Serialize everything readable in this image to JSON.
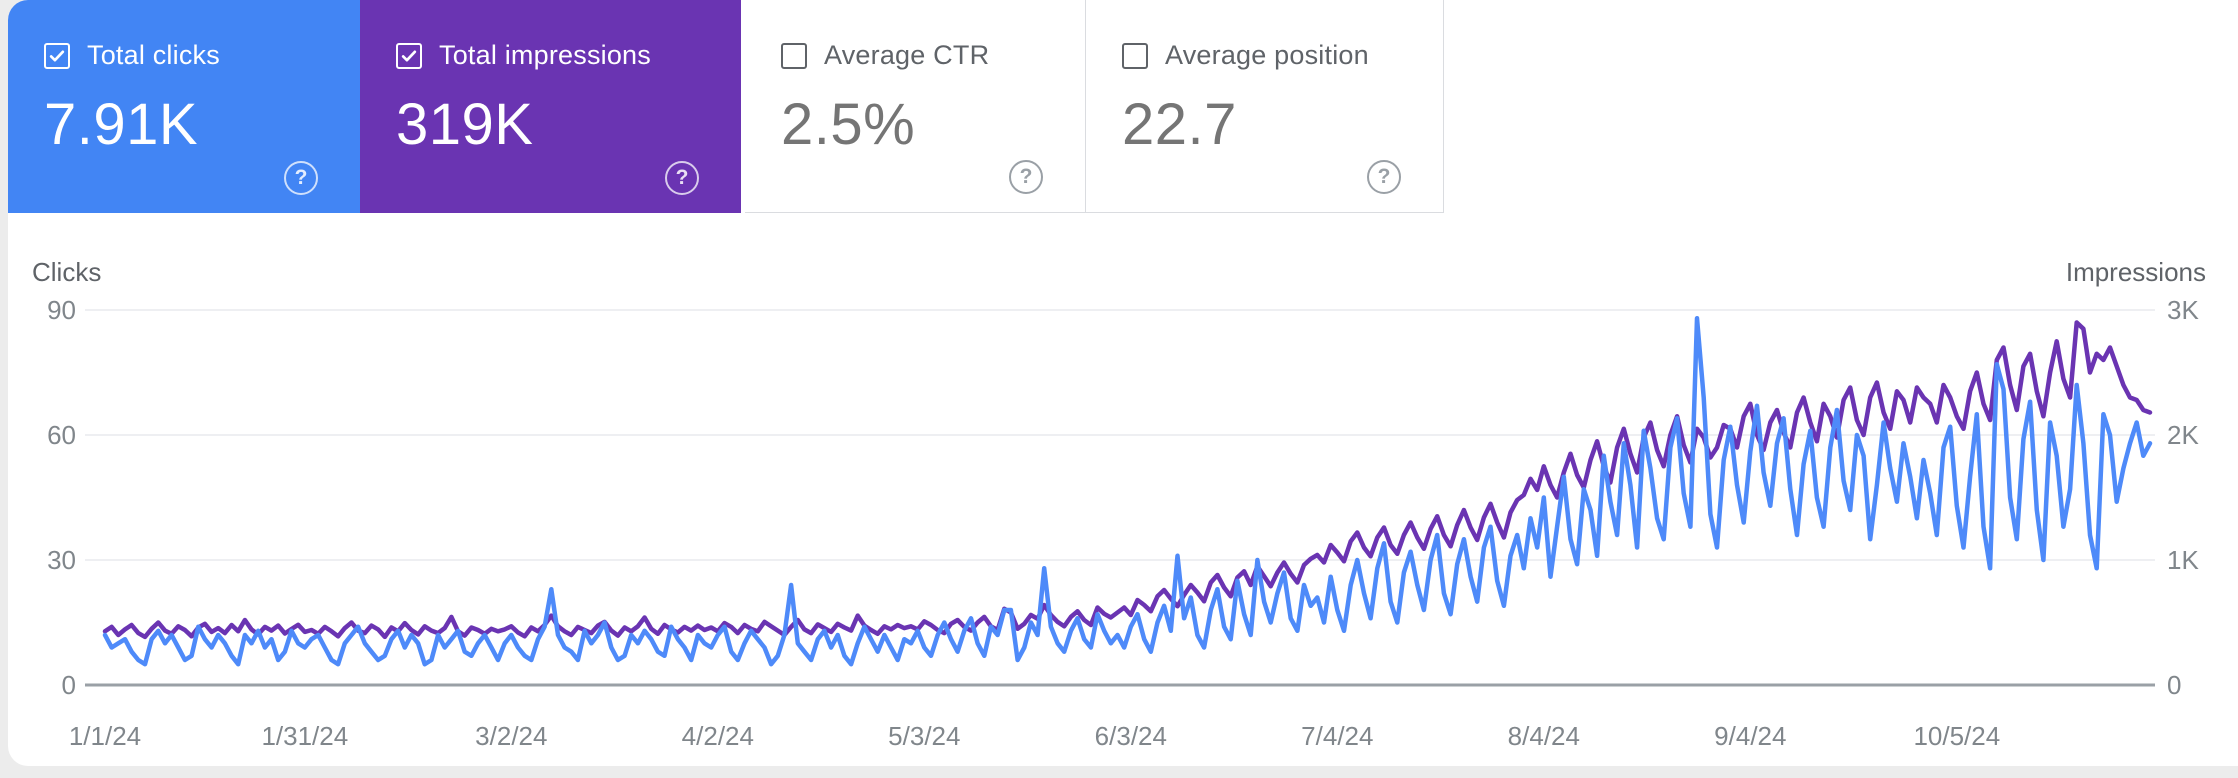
{
  "cards": [
    {
      "label": "Total clicks",
      "value": "7.91K",
      "checked": true,
      "bg": "#4285f4"
    },
    {
      "label": "Total impressions",
      "value": "319K",
      "checked": true,
      "bg": "#6a34b2"
    },
    {
      "label": "Average CTR",
      "value": "2.5%",
      "checked": false,
      "bg": "#ffffff"
    },
    {
      "label": "Average position",
      "value": "22.7",
      "checked": false,
      "bg": "#ffffff"
    }
  ],
  "help_icon_glyph": "?",
  "chart_data": {
    "type": "line",
    "left_axis": {
      "label": "Clicks",
      "ticks": [
        "0",
        "30",
        "60",
        "90"
      ],
      "max": 90
    },
    "right_axis": {
      "label": "Impressions",
      "ticks": [
        "0",
        "1K",
        "2K",
        "3K"
      ],
      "max": 3000
    },
    "x_ticks": [
      {
        "label": "1/1/24",
        "day": 0
      },
      {
        "label": "1/31/24",
        "day": 30
      },
      {
        "label": "3/2/24",
        "day": 61
      },
      {
        "label": "4/2/24",
        "day": 92
      },
      {
        "label": "5/3/24",
        "day": 123
      },
      {
        "label": "6/3/24",
        "day": 154
      },
      {
        "label": "7/4/24",
        "day": 185
      },
      {
        "label": "8/4/24",
        "day": 216
      },
      {
        "label": "9/4/24",
        "day": 247
      },
      {
        "label": "10/5/24",
        "day": 278
      }
    ],
    "num_days": 308,
    "grid_color": "#e8eaed",
    "baseline_color": "#9aa0a6",
    "tick_text_color": "#80868b",
    "axis_title_color": "#5f6368",
    "series": [
      {
        "name": "Clicks",
        "axis": "left",
        "color": "#4e8af9",
        "values": [
          12,
          9,
          10,
          11,
          8,
          6,
          5,
          11,
          13,
          10,
          12,
          9,
          6,
          7,
          14,
          11,
          9,
          12,
          10,
          7,
          5,
          12,
          10,
          13,
          9,
          11,
          6,
          8,
          13,
          10,
          9,
          11,
          12,
          9,
          6,
          5,
          10,
          12,
          14,
          10,
          8,
          6,
          7,
          11,
          13,
          9,
          12,
          10,
          5,
          6,
          12,
          9,
          11,
          13,
          8,
          7,
          10,
          12,
          9,
          6,
          10,
          12,
          9,
          7,
          6,
          11,
          14,
          23,
          12,
          9,
          8,
          6,
          13,
          10,
          12,
          15,
          9,
          6,
          7,
          12,
          10,
          13,
          11,
          8,
          7,
          14,
          11,
          9,
          6,
          12,
          10,
          9,
          12,
          14,
          8,
          6,
          10,
          13,
          11,
          9,
          5,
          7,
          12,
          24,
          10,
          8,
          6,
          11,
          13,
          9,
          12,
          7,
          5,
          10,
          14,
          11,
          8,
          12,
          9,
          6,
          11,
          10,
          13,
          9,
          7,
          12,
          15,
          11,
          8,
          13,
          16,
          10,
          7,
          14,
          12,
          18,
          18,
          6,
          9,
          15,
          12,
          28,
          14,
          10,
          8,
          13,
          16,
          11,
          9,
          17,
          13,
          10,
          12,
          9,
          14,
          17,
          11,
          8,
          15,
          19,
          13,
          31,
          16,
          21,
          12,
          9,
          18,
          23,
          14,
          11,
          25,
          17,
          12,
          30,
          20,
          15,
          22,
          27,
          16,
          13,
          24,
          19,
          21,
          15,
          26,
          18,
          13,
          24,
          30,
          22,
          16,
          28,
          34,
          20,
          15,
          27,
          32,
          24,
          18,
          30,
          36,
          22,
          17,
          29,
          35,
          26,
          20,
          33,
          38,
          25,
          19,
          31,
          36,
          28,
          40,
          33,
          45,
          26,
          38,
          50,
          35,
          29,
          47,
          42,
          31,
          55,
          44,
          36,
          58,
          48,
          33,
          61,
          52,
          40,
          35,
          57,
          64,
          46,
          38,
          88,
          69,
          41,
          33,
          54,
          62,
          48,
          39,
          56,
          67,
          51,
          43,
          58,
          64,
          47,
          36,
          53,
          61,
          45,
          38,
          57,
          66,
          49,
          42,
          60,
          55,
          35,
          48,
          63,
          52,
          44,
          58,
          50,
          40,
          54,
          46,
          36,
          57,
          62,
          43,
          33,
          50,
          65,
          38,
          28,
          77,
          71,
          45,
          35,
          59,
          68,
          42,
          30,
          63,
          55,
          38,
          47,
          72,
          58,
          36,
          28,
          65,
          60,
          44,
          52,
          58,
          63,
          55,
          58
        ]
      },
      {
        "name": "Impressions",
        "axis": "right",
        "color": "#6a34b2",
        "values": [
          430,
          465,
          400,
          445,
          480,
          415,
          385,
          450,
          500,
          435,
          410,
          470,
          440,
          390,
          460,
          490,
          425,
          455,
          415,
          480,
          430,
          520,
          445,
          405,
          465,
          435,
          475,
          412,
          448,
          482,
          425,
          440,
          410,
          465,
          430,
          390,
          455,
          500,
          435,
          415,
          475,
          445,
          385,
          460,
          430,
          495,
          440,
          405,
          470,
          435,
          415,
          455,
          545,
          430,
          395,
          460,
          440,
          410,
          450,
          430,
          445,
          470,
          420,
          390,
          460,
          430,
          480,
          555,
          470,
          430,
          400,
          465,
          440,
          415,
          475,
          505,
          435,
          395,
          460,
          430,
          470,
          540,
          450,
          410,
          480,
          445,
          420,
          465,
          435,
          475,
          440,
          460,
          430,
          495,
          465,
          415,
          480,
          450,
          430,
          505,
          470,
          435,
          400,
          465,
          520,
          445,
          415,
          485,
          455,
          425,
          490,
          460,
          435,
          555,
          475,
          440,
          410,
          470,
          445,
          480,
          455,
          470,
          445,
          510,
          480,
          440,
          415,
          490,
          520,
          465,
          435,
          500,
          545,
          470,
          440,
          610,
          580,
          450,
          490,
          560,
          530,
          640,
          560,
          505,
          470,
          545,
          590,
          520,
          480,
          620,
          570,
          540,
          580,
          620,
          560,
          680,
          640,
          590,
          710,
          760,
          690,
          630,
          720,
          800,
          740,
          670,
          820,
          880,
          780,
          710,
          860,
          910,
          800,
          950,
          870,
          790,
          900,
          980,
          890,
          820,
          960,
          1010,
          1040,
          980,
          1120,
          1060,
          990,
          1150,
          1220,
          1100,
          1030,
          1180,
          1260,
          1120,
          1050,
          1200,
          1300,
          1180,
          1090,
          1250,
          1350,
          1200,
          1110,
          1280,
          1400,
          1260,
          1160,
          1340,
          1450,
          1300,
          1180,
          1380,
          1480,
          1520,
          1650,
          1560,
          1750,
          1600,
          1500,
          1700,
          1850,
          1680,
          1580,
          1800,
          1950,
          1750,
          1620,
          1900,
          2050,
          1850,
          1700,
          1980,
          2100,
          1880,
          1750,
          2000,
          2150,
          1920,
          1780,
          2050,
          1980,
          1820,
          1900,
          2080,
          2050,
          1900,
          2150,
          2250,
          2000,
          1880,
          2100,
          2200,
          2020,
          1900,
          2180,
          2300,
          2100,
          1950,
          2250,
          2150,
          1980,
          2280,
          2380,
          2120,
          2000,
          2300,
          2420,
          2180,
          2050,
          2350,
          2280,
          2100,
          2380,
          2300,
          2250,
          2100,
          2400,
          2300,
          2150,
          2050,
          2350,
          2500,
          2250,
          2120,
          2600,
          2700,
          2400,
          2200,
          2550,
          2650,
          2350,
          2150,
          2500,
          2750,
          2450,
          2300,
          2900,
          2850,
          2500,
          2650,
          2600,
          2700,
          2550,
          2400,
          2300,
          2280,
          2200,
          2180
        ]
      }
    ]
  }
}
